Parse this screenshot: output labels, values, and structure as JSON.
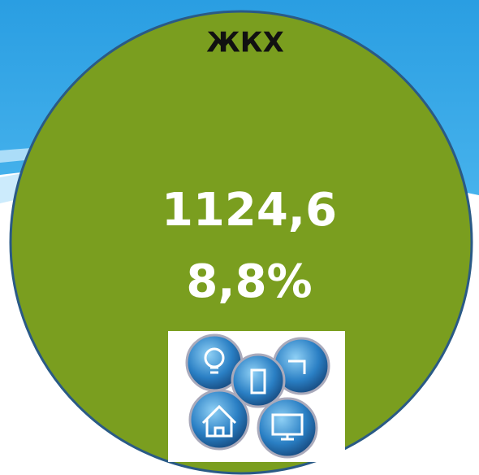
{
  "title": "ЖКХ",
  "value": "1124,6",
  "share": "8,8%"
}
